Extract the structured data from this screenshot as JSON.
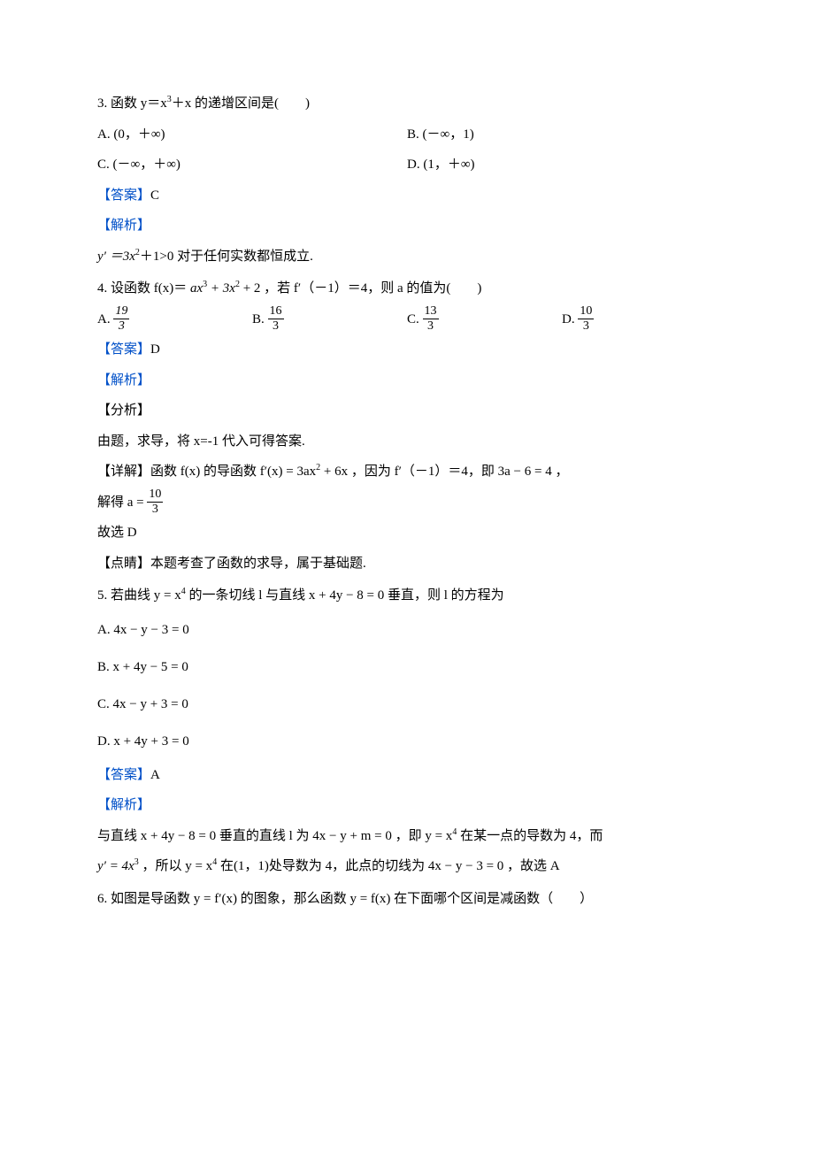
{
  "labels": {
    "answer": "【答案】",
    "analysis": "【解析】",
    "fenxi": "【分析】",
    "detail": "【详解】",
    "dianjing": "【点睛】"
  },
  "q3": {
    "stem_pre": "3. 函数 y＝x",
    "stem_sup": "3",
    "stem_post": "＋x 的递增区间是(　　)",
    "optA": "A. (0，＋∞)",
    "optB": "B. (－∞，1)",
    "optC": "C. (－∞，＋∞)",
    "optD": "D. (1，＋∞)",
    "answer": "C",
    "explain_pre": "y′ ＝3x",
    "explain_sup": "2",
    "explain_post": "＋1>0 对于任何实数都恒成立."
  },
  "q4": {
    "stem_a": "4. 设函数 f(x)＝ ",
    "stem_b": "ax",
    "stem_b_sup": "3",
    "stem_c": " + 3x",
    "stem_c_sup": "2",
    "stem_d": " + 2 ，若 f′（－1）＝4，则 a 的值为(　　)",
    "A_label": "A. ",
    "A_num": "19",
    "A_den": "3",
    "B_label": "B. ",
    "B_num": "16",
    "B_den": "3",
    "C_label": "C. ",
    "C_num": "13",
    "C_den": "3",
    "D_label": "D. ",
    "D_num": "10",
    "D_den": "3",
    "answer": "D",
    "fenxi_text": "由题，求导，将 x=-1 代入可得答案.",
    "detail_a": "函数 f(x) 的导函数 f′(x) = 3ax",
    "detail_a_sup": "2",
    "detail_b": " + 6x ，因为 f′（－1）＝4，即 3a − 6 = 4 ，",
    "detail_c_pre": "解得 a = ",
    "detail_c_num": "10",
    "detail_c_den": "3",
    "gu": "故选 D",
    "dianjing_text": "本题考查了函数的求导，属于基础题."
  },
  "q5": {
    "stem_a": "5. 若曲线 y = x",
    "stem_a_sup": "4",
    "stem_b": " 的一条切线 l 与直线 x + 4y − 8 = 0 垂直，则 l 的方程为",
    "optA": "A.  4x − y − 3 = 0",
    "optB": "B.  x + 4y − 5 = 0",
    "optC": "C.  4x − y + 3 = 0",
    "optD": "D.  x + 4y + 3 = 0",
    "answer": "A",
    "exp1_a": "与直线 x + 4y − 8 = 0 垂直的直线 l 为 4x − y + m = 0 ，即 y = x",
    "exp1_sup": "4",
    "exp1_b": " 在某一点的导数为 4，而",
    "exp2_a": "y′ = 4x",
    "exp2_a_sup": "3",
    "exp2_b": " ，所以 y = x",
    "exp2_b_sup": "4",
    "exp2_c": " 在(1，1)处导数为 4，此点的切线为 4x − y − 3 = 0 ，故选 A"
  },
  "q6": {
    "stem": "6. 如图是导函数 y = f′(x) 的图象，那么函数 y = f(x) 在下面哪个区间是减函数（　　）"
  },
  "colors": {
    "link": "#0050c8",
    "text": "#000000",
    "background": "#ffffff"
  }
}
